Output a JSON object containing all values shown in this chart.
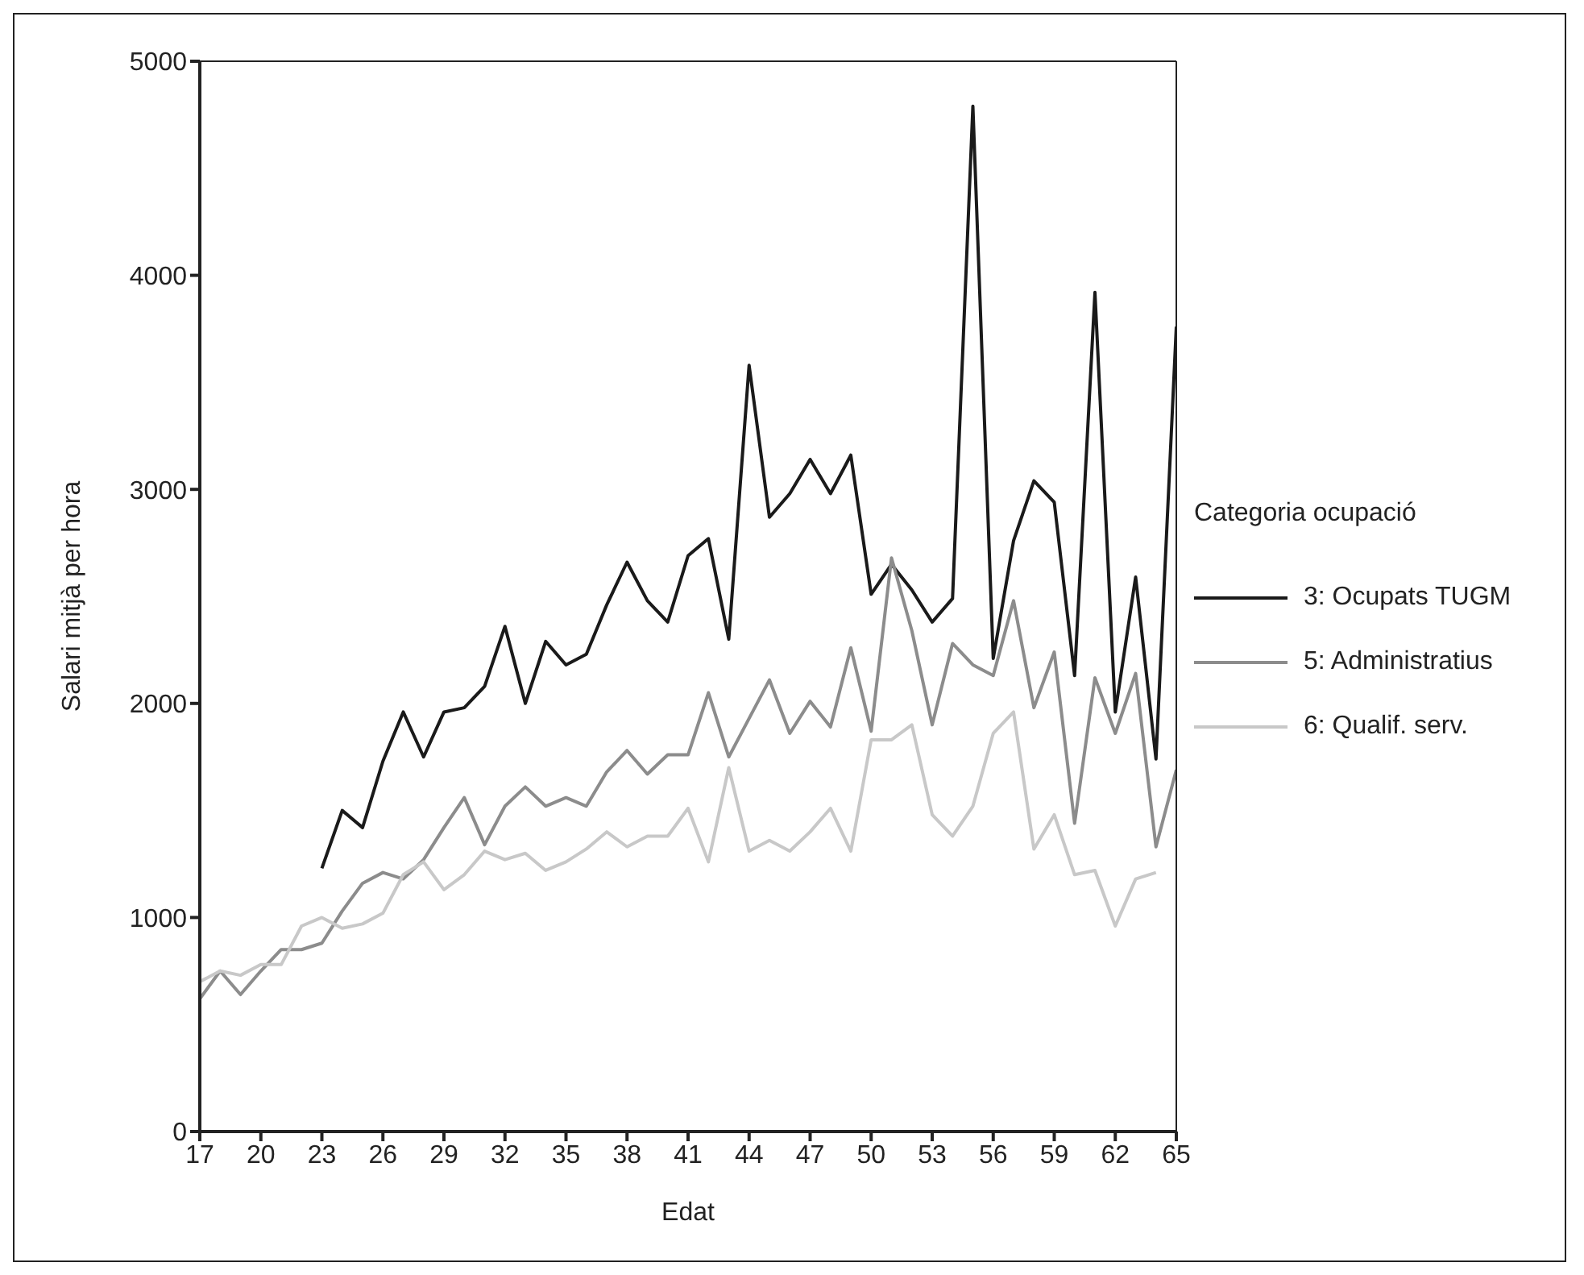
{
  "chart_data": {
    "type": "line",
    "xlabel": "Edat",
    "ylabel": "Salari mitjà per hora",
    "legend_title": "Categoria ocupació",
    "legend": "right",
    "grid": false,
    "marker": "none",
    "line_style": "solid",
    "x": [
      17,
      18,
      19,
      20,
      21,
      22,
      23,
      24,
      25,
      26,
      27,
      28,
      29,
      30,
      31,
      32,
      33,
      34,
      35,
      36,
      37,
      38,
      39,
      40,
      41,
      42,
      43,
      44,
      45,
      46,
      47,
      48,
      49,
      50,
      51,
      52,
      53,
      54,
      55,
      56,
      57,
      58,
      59,
      60,
      61,
      62,
      63,
      64,
      65
    ],
    "xlim": [
      17,
      65
    ],
    "xticks": [
      17,
      20,
      23,
      26,
      29,
      32,
      35,
      38,
      41,
      44,
      47,
      50,
      53,
      56,
      59,
      62,
      65
    ],
    "ylim": [
      0,
      5000
    ],
    "yticks": [
      0,
      1000,
      2000,
      3000,
      4000,
      5000
    ],
    "series": [
      {
        "name": "3: Ocupats TUGM",
        "color": "#1a1a1a",
        "values": [
          null,
          null,
          null,
          null,
          null,
          null,
          1230,
          1500,
          1420,
          1730,
          1960,
          1750,
          1960,
          1980,
          2080,
          2360,
          2000,
          2290,
          2180,
          2230,
          2460,
          2660,
          2480,
          2380,
          2690,
          2770,
          2300,
          3580,
          2870,
          2980,
          3140,
          2980,
          3160,
          2510,
          2650,
          2530,
          2380,
          2490,
          4790,
          2210,
          2760,
          3040,
          2940,
          2130,
          3920,
          1960,
          2590,
          1740,
          3760
        ]
      },
      {
        "name": "5: Administratius",
        "color": "#8c8c8c",
        "values": [
          620,
          750,
          640,
          750,
          850,
          850,
          880,
          1030,
          1160,
          1210,
          1180,
          1270,
          1420,
          1560,
          1340,
          1520,
          1610,
          1520,
          1560,
          1520,
          1680,
          1780,
          1670,
          1760,
          1760,
          2050,
          1750,
          1930,
          2110,
          1860,
          2010,
          1890,
          2260,
          1870,
          2680,
          2340,
          1900,
          2280,
          2180,
          2130,
          2480,
          1980,
          2240,
          1440,
          2120,
          1860,
          2140,
          1330,
          1690
        ]
      },
      {
        "name": "6: Qualif. serv.",
        "color": "#c8c8c8",
        "values": [
          700,
          750,
          730,
          780,
          780,
          960,
          1000,
          950,
          970,
          1020,
          1200,
          1260,
          1130,
          1200,
          1310,
          1270,
          1300,
          1220,
          1260,
          1320,
          1400,
          1330,
          1380,
          1380,
          1510,
          1260,
          1700,
          1310,
          1360,
          1310,
          1400,
          1510,
          1310,
          1830,
          1830,
          1900,
          1480,
          1380,
          1520,
          1860,
          1960,
          1320,
          1480,
          1200,
          1220,
          960,
          1180,
          1210,
          null
        ]
      }
    ]
  }
}
